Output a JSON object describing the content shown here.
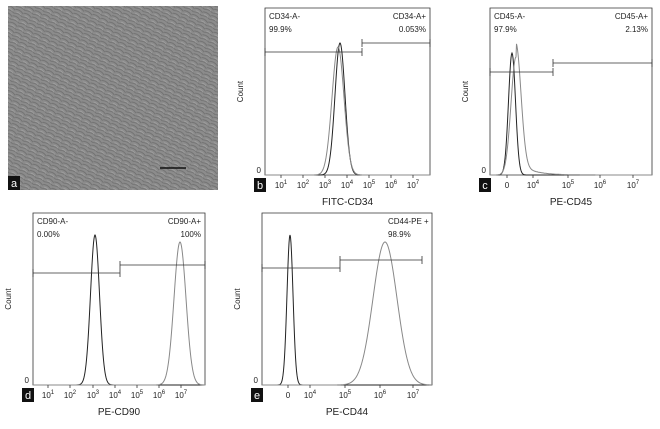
{
  "panels": [
    {
      "label": "a"
    },
    {
      "label": "b",
      "y_label": "Count",
      "y_zero": "0",
      "x_label": "FITC-CD34",
      "gates": [
        {
          "name": "CD34-A-",
          "value": "99.9%"
        },
        {
          "name": "CD34-A+",
          "value": "0.053%"
        }
      ],
      "x_ticks": [
        {
          "base": "10",
          "exp": "1"
        },
        {
          "base": "10",
          "exp": "2"
        },
        {
          "base": "10",
          "exp": "3"
        },
        {
          "base": "10",
          "exp": "4"
        },
        {
          "base": "10",
          "exp": "5"
        },
        {
          "base": "10",
          "exp": "6"
        },
        {
          "base": "10",
          "exp": "7"
        }
      ]
    },
    {
      "label": "c",
      "y_label": "Count",
      "y_zero": "0",
      "x_label": "PE-CD45",
      "gates": [
        {
          "name": "CD45-A-",
          "value": "97.9%"
        },
        {
          "name": "CD45-A+",
          "value": "2.13%"
        }
      ],
      "x_ticks": [
        {
          "base": "0"
        },
        {
          "base": "10",
          "exp": "4"
        },
        {
          "base": "10",
          "exp": "5"
        },
        {
          "base": "10",
          "exp": "6"
        },
        {
          "base": "10",
          "exp": "7"
        }
      ]
    },
    {
      "label": "d",
      "y_label": "Count",
      "y_zero": "0",
      "x_label": "PE-CD90",
      "gates": [
        {
          "name": "CD90-A-",
          "value": "0.00%"
        },
        {
          "name": "CD90-A+",
          "value": "100%"
        }
      ],
      "x_ticks": [
        {
          "base": "10",
          "exp": "1"
        },
        {
          "base": "10",
          "exp": "2"
        },
        {
          "base": "10",
          "exp": "3"
        },
        {
          "base": "10",
          "exp": "4"
        },
        {
          "base": "10",
          "exp": "5"
        },
        {
          "base": "10",
          "exp": "6"
        },
        {
          "base": "10",
          "exp": "7"
        }
      ]
    },
    {
      "label": "e",
      "y_label": "Count",
      "y_zero": "0",
      "x_label": "PE-CD44",
      "gates": [
        {
          "name": "CD44-PE +",
          "value": "98.9%"
        }
      ],
      "x_ticks": [
        {
          "base": "0"
        },
        {
          "base": "10",
          "exp": "4"
        },
        {
          "base": "10",
          "exp": "5"
        },
        {
          "base": "10",
          "exp": "6"
        },
        {
          "base": "10",
          "exp": "7"
        }
      ]
    }
  ]
}
